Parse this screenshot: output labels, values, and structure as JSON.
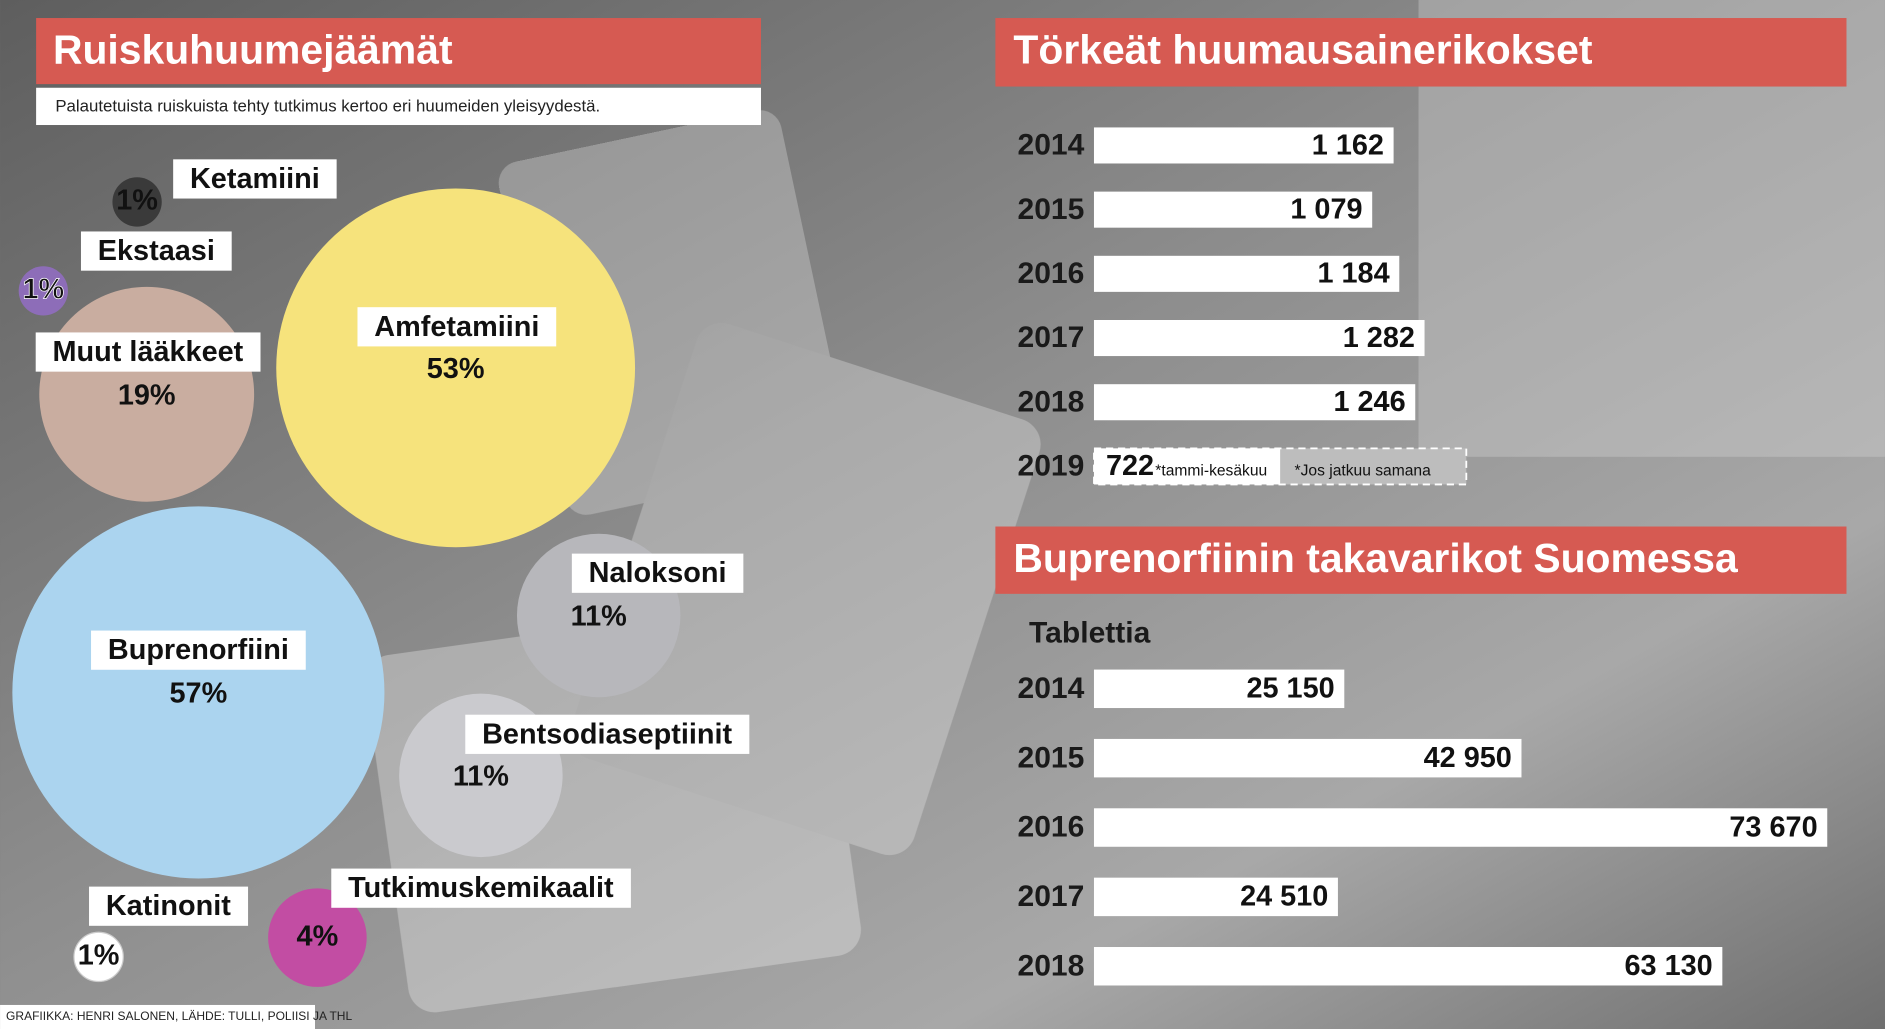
{
  "chart_data": [
    {
      "type": "bubble",
      "title": "Ruiskuhuumejäämät",
      "subtitle": "Palautetuista ruiskuista tehty tutkimus kertoo eri huumeiden yleisyydestä.",
      "categories": [
        "Ketamiini",
        "Ekstaasi",
        "Muut lääkkeet",
        "Amfetamiini",
        "Buprenorfiini",
        "Naloksoni",
        "Bentsodiaseptiinit",
        "Tutkimuskemikaalit",
        "Katinonit"
      ],
      "values": [
        1,
        1,
        19,
        53,
        57,
        11,
        11,
        4,
        1
      ],
      "value_labels": [
        "1%",
        "1%",
        "19%",
        "53%",
        "57%",
        "11%",
        "11%",
        "4%",
        "1%"
      ],
      "colors": [
        "#3a3a3a",
        "#8d6db8",
        "#c9ada0",
        "#f6e37c",
        "#abd4ef",
        "#b7b7bb",
        "#cacace",
        "#c24da3",
        "#ffffff"
      ]
    },
    {
      "type": "bar",
      "title": "Törkeät huumausainerikokset",
      "categories": [
        "2014",
        "2015",
        "2016",
        "2017",
        "2018",
        "2019"
      ],
      "values": [
        1162,
        1079,
        1184,
        1282,
        1246,
        722
      ],
      "value_labels": [
        "1 162",
        "1 079",
        "1 184",
        "1 282",
        "1 246",
        "722"
      ],
      "projected_values": [
        null,
        null,
        null,
        null,
        null,
        1444
      ],
      "annotations": [
        "*tammi-kesäkuu",
        "*Jos jatkuu samana"
      ],
      "color": "#ffffff"
    },
    {
      "type": "bar",
      "title": "Buprenorfiinin takavarikot Suomessa",
      "subtitle": "Tablettia",
      "categories": [
        "2014",
        "2015",
        "2016",
        "2017",
        "2018"
      ],
      "values": [
        25150,
        42950,
        73670,
        24510,
        63130
      ],
      "value_labels": [
        "25 150",
        "42 950",
        "73 670",
        "24 510",
        "63 130"
      ],
      "color": "#ffffff"
    }
  ],
  "footer": "GRAFIIKKA: HENRI SALONEN, LÄHDE: TULLI, POLIISI JA THL"
}
